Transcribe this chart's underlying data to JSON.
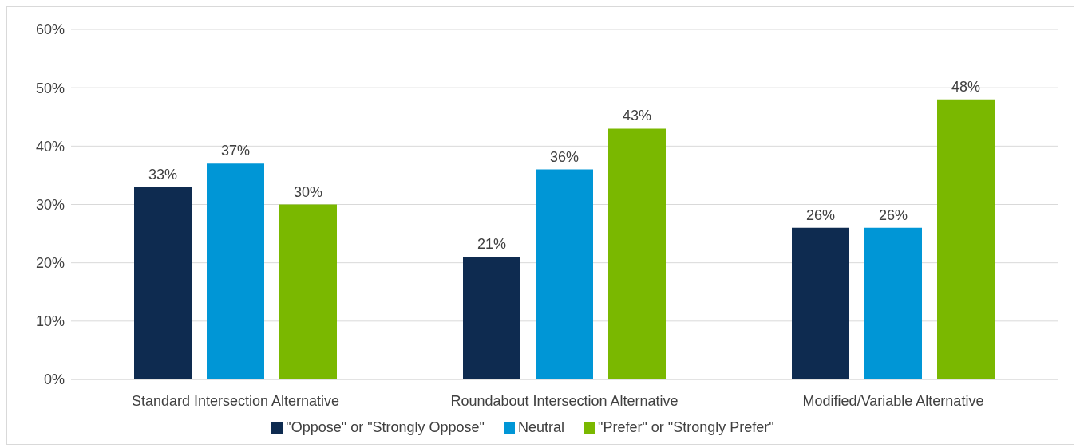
{
  "chart_data": {
    "type": "bar",
    "categories": [
      "Standard Intersection Alternative",
      "Roundabout Intersection Alternative",
      "Modified/Variable Alternative"
    ],
    "series": [
      {
        "name": "\"Oppose\" or \"Strongly Oppose\"",
        "color": "#0e2b50",
        "values": [
          33,
          21,
          26
        ],
        "value_labels": [
          "33%",
          "21%",
          "26%"
        ]
      },
      {
        "name": "Neutral",
        "color": "#0096d6",
        "values": [
          37,
          36,
          26
        ],
        "value_labels": [
          "37%",
          "36%",
          "26%"
        ]
      },
      {
        "name": "\"Prefer\" or \"Strongly Prefer\"",
        "color": "#7ab800",
        "values": [
          30,
          43,
          48
        ],
        "value_labels": [
          "30%",
          "43%",
          "48%"
        ]
      }
    ],
    "ylim": [
      0,
      60
    ],
    "yticks": [
      {
        "value": 0,
        "label": "0%"
      },
      {
        "value": 10,
        "label": "10%"
      },
      {
        "value": 20,
        "label": "20%"
      },
      {
        "value": 30,
        "label": "30%"
      },
      {
        "value": 40,
        "label": "40%"
      },
      {
        "value": 50,
        "label": "50%"
      },
      {
        "value": 60,
        "label": "60%"
      }
    ],
    "grid": "y",
    "legend": "bottom"
  }
}
